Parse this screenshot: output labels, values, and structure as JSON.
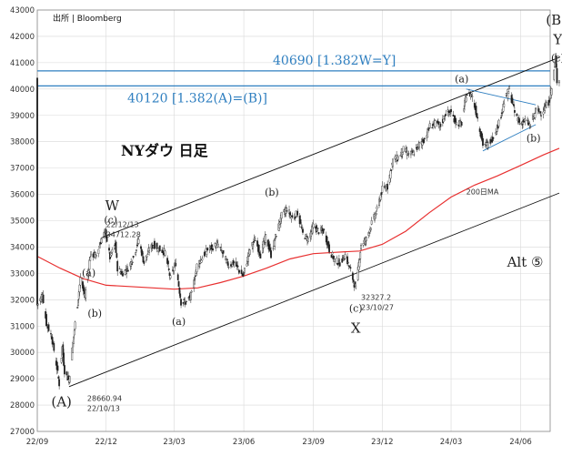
{
  "source_label": "出所 | Bloomberg",
  "chart_title": "NYダウ 日足",
  "chart_data": {
    "type": "candlestick",
    "title": "NYダウ 日足",
    "xlabel": "",
    "ylabel": "",
    "ylim": [
      27000,
      43000
    ],
    "yticks": [
      27000,
      28000,
      29000,
      30000,
      31000,
      32000,
      33000,
      34000,
      35000,
      36000,
      37000,
      38000,
      39000,
      40000,
      41000,
      42000,
      43000
    ],
    "xlim": [
      "2022-09-01",
      "2024-07-10"
    ],
    "xticks": [
      {
        "label": "22/09",
        "date": "2022-09-01"
      },
      {
        "label": "22/12",
        "date": "2022-12-01"
      },
      {
        "label": "23/03",
        "date": "2023-03-01"
      },
      {
        "label": "23/06",
        "date": "2023-06-01"
      },
      {
        "label": "23/09",
        "date": "2023-09-01"
      },
      {
        "label": "23/12",
        "date": "2023-12-01"
      },
      {
        "label": "24/03",
        "date": "2024-03-01"
      },
      {
        "label": "24/06",
        "date": "2024-06-01"
      }
    ],
    "grid": true,
    "price_path": [
      [
        "2022-09-01",
        31800
      ],
      [
        "2022-09-08",
        32200
      ],
      [
        "2022-09-13",
        31100
      ],
      [
        "2022-09-20",
        30600
      ],
      [
        "2022-09-27",
        29400
      ],
      [
        "2022-09-30",
        28800
      ],
      [
        "2022-10-04",
        30200
      ],
      [
        "2022-10-07",
        29300
      ],
      [
        "2022-10-13",
        28900
      ],
      [
        "2022-10-17",
        30100
      ],
      [
        "2022-10-21",
        31100
      ],
      [
        "2022-10-28",
        32800
      ],
      [
        "2022-11-03",
        32100
      ],
      [
        "2022-11-10",
        33700
      ],
      [
        "2022-11-18",
        33700
      ],
      [
        "2022-11-25",
        34300
      ],
      [
        "2022-11-30",
        34600
      ],
      [
        "2022-12-06",
        33600
      ],
      [
        "2022-12-13",
        34100
      ],
      [
        "2022-12-16",
        33200
      ],
      [
        "2022-12-22",
        33000
      ],
      [
        "2022-12-30",
        33200
      ],
      [
        "2023-01-06",
        33600
      ],
      [
        "2023-01-13",
        34300
      ],
      [
        "2023-01-20",
        33400
      ],
      [
        "2023-01-27",
        33900
      ],
      [
        "2023-02-02",
        34100
      ],
      [
        "2023-02-10",
        33900
      ],
      [
        "2023-02-17",
        33800
      ],
      [
        "2023-02-24",
        32800
      ],
      [
        "2023-03-03",
        33400
      ],
      [
        "2023-03-10",
        31900
      ],
      [
        "2023-03-17",
        31900
      ],
      [
        "2023-03-24",
        32200
      ],
      [
        "2023-03-31",
        33300
      ],
      [
        "2023-04-14",
        33900
      ],
      [
        "2023-04-28",
        34100
      ],
      [
        "2023-05-05",
        33700
      ],
      [
        "2023-05-12",
        33300
      ],
      [
        "2023-05-19",
        33400
      ],
      [
        "2023-05-31",
        32900
      ],
      [
        "2023-06-09",
        33900
      ],
      [
        "2023-06-16",
        34300
      ],
      [
        "2023-06-23",
        33700
      ],
      [
        "2023-06-30",
        34400
      ],
      [
        "2023-07-07",
        33700
      ],
      [
        "2023-07-14",
        34500
      ],
      [
        "2023-07-21",
        35200
      ],
      [
        "2023-07-28",
        35450
      ],
      [
        "2023-08-04",
        35100
      ],
      [
        "2023-08-11",
        35300
      ],
      [
        "2023-08-18",
        34500
      ],
      [
        "2023-08-25",
        34300
      ],
      [
        "2023-09-01",
        34800
      ],
      [
        "2023-09-08",
        34600
      ],
      [
        "2023-09-15",
        34600
      ],
      [
        "2023-09-22",
        33900
      ],
      [
        "2023-09-29",
        33500
      ],
      [
        "2023-10-06",
        33400
      ],
      [
        "2023-10-13",
        33700
      ],
      [
        "2023-10-20",
        33100
      ],
      [
        "2023-10-27",
        32400
      ],
      [
        "2023-11-03",
        34100
      ],
      [
        "2023-11-10",
        34300
      ],
      [
        "2023-11-17",
        34900
      ],
      [
        "2023-11-24",
        35400
      ],
      [
        "2023-12-01",
        36200
      ],
      [
        "2023-12-08",
        36300
      ],
      [
        "2023-12-15",
        37300
      ],
      [
        "2023-12-22",
        37400
      ],
      [
        "2023-12-29",
        37700
      ],
      [
        "2024-01-05",
        37500
      ],
      [
        "2024-01-12",
        37600
      ],
      [
        "2024-01-19",
        37900
      ],
      [
        "2024-01-26",
        38100
      ],
      [
        "2024-02-02",
        38600
      ],
      [
        "2024-02-09",
        38700
      ],
      [
        "2024-02-16",
        38600
      ],
      [
        "2024-02-23",
        39100
      ],
      [
        "2024-03-01",
        39100
      ],
      [
        "2024-03-08",
        38700
      ],
      [
        "2024-03-15",
        38700
      ],
      [
        "2024-03-21",
        39800
      ],
      [
        "2024-03-28",
        39800
      ],
      [
        "2024-04-05",
        38900
      ],
      [
        "2024-04-12",
        37900
      ],
      [
        "2024-04-19",
        37900
      ],
      [
        "2024-04-26",
        38200
      ],
      [
        "2024-05-03",
        38700
      ],
      [
        "2024-05-10",
        39500
      ],
      [
        "2024-05-17",
        40000
      ],
      [
        "2024-05-24",
        39100
      ],
      [
        "2024-05-31",
        38700
      ],
      [
        "2024-06-07",
        38800
      ],
      [
        "2024-06-14",
        38600
      ],
      [
        "2024-06-21",
        39200
      ],
      [
        "2024-06-28",
        39100
      ],
      [
        "2024-07-03",
        39300
      ],
      [
        "2024-07-08",
        39500
      ],
      [
        "2024-07-12",
        40000
      ],
      [
        "2024-07-17",
        41200
      ],
      [
        "2024-07-19",
        40300
      ],
      [
        "2024-07-22",
        40400
      ]
    ],
    "moving_average": {
      "name": "200日MA",
      "color": "#e83030",
      "points": [
        [
          "2022-09-01",
          33650
        ],
        [
          "2022-10-01",
          33200
        ],
        [
          "2022-11-01",
          32800
        ],
        [
          "2022-12-01",
          32550
        ],
        [
          "2023-01-01",
          32500
        ],
        [
          "2023-02-01",
          32450
        ],
        [
          "2023-03-01",
          32400
        ],
        [
          "2023-04-01",
          32450
        ],
        [
          "2023-05-01",
          32650
        ],
        [
          "2023-06-01",
          32900
        ],
        [
          "2023-07-01",
          33200
        ],
        [
          "2023-08-01",
          33550
        ],
        [
          "2023-09-01",
          33750
        ],
        [
          "2023-10-01",
          33800
        ],
        [
          "2023-11-01",
          33850
        ],
        [
          "2023-12-01",
          34100
        ],
        [
          "2024-01-01",
          34600
        ],
        [
          "2024-02-01",
          35300
        ],
        [
          "2024-03-01",
          35900
        ],
        [
          "2024-04-01",
          36350
        ],
        [
          "2024-05-01",
          36700
        ],
        [
          "2024-06-01",
          37100
        ],
        [
          "2024-07-01",
          37500
        ],
        [
          "2024-07-22",
          37750
        ]
      ]
    },
    "horizontal_levels": [
      {
        "value": 40690,
        "label": "40690 [1.382W=Y]",
        "color": "#2f7fc0"
      },
      {
        "value": 40120,
        "label": "40120 [1.382(A)=(B)]",
        "color": "#2f7fc0"
      }
    ],
    "channel_lines": [
      {
        "points": [
          [
            "2022-10-13",
            28700
          ],
          [
            "2024-07-22",
            36050
          ]
        ],
        "color": "#111111"
      },
      {
        "points": [
          [
            "2022-11-25",
            34350
          ],
          [
            "2024-07-22",
            41200
          ]
        ],
        "color": "#111111"
      }
    ],
    "triangle_lines": [
      {
        "points": [
          [
            "2024-03-21",
            40000
          ],
          [
            "2024-06-21",
            39400
          ]
        ],
        "color": "#2f7fc0"
      },
      {
        "points": [
          [
            "2024-04-12",
            37650
          ],
          [
            "2024-06-21",
            38650
          ]
        ],
        "color": "#2f7fc0"
      }
    ],
    "wave_labels": [
      {
        "text": "(A)",
        "date": "2022-10-03",
        "value": 27950,
        "size": "big"
      },
      {
        "text": "(a)",
        "date": "2022-11-08",
        "value": 32900
      },
      {
        "text": "(b)",
        "date": "2022-11-16",
        "value": 31350
      },
      {
        "text": "(c)",
        "date": "2022-12-07",
        "value": 34900
      },
      {
        "text": "W",
        "date": "2022-12-09",
        "value": 35400,
        "size": "big"
      },
      {
        "text": "(a)",
        "date": "2023-03-07",
        "value": 31050
      },
      {
        "text": "(b)",
        "date": "2023-07-08",
        "value": 35950
      },
      {
        "text": "(c)",
        "date": "2023-10-27",
        "value": 31550
      },
      {
        "text": "X",
        "date": "2023-10-27",
        "value": 30750,
        "size": "big"
      },
      {
        "text": "(a)",
        "date": "2024-03-15",
        "value": 40250
      },
      {
        "text": "(b)",
        "date": "2024-06-18",
        "value": 38000
      },
      {
        "text": "(c)",
        "date": "2024-07-20",
        "value": 41050
      },
      {
        "text": "(B)",
        "date": "2024-07-18",
        "value": 42450,
        "size": "big"
      },
      {
        "text": "Y",
        "date": "2024-07-20",
        "value": 41700,
        "size": "big"
      }
    ],
    "annotations": [
      {
        "lines": [
          "22/12/13",
          "34712.28"
        ],
        "date": "2022-12-01",
        "value": 34750
      },
      {
        "lines": [
          "28660.94",
          "22/10/13"
        ],
        "date": "2022-11-06",
        "value": 28150
      },
      {
        "lines": [
          "32327.2",
          "23/10/27"
        ],
        "date": "2023-11-03",
        "value": 32000
      }
    ],
    "ma_label": {
      "text": "200日MA",
      "date": "2024-03-21",
      "value": 36000
    },
    "alt_label": {
      "text": "Alt ⑤",
      "date": "2024-05-14",
      "value": 33250
    }
  }
}
